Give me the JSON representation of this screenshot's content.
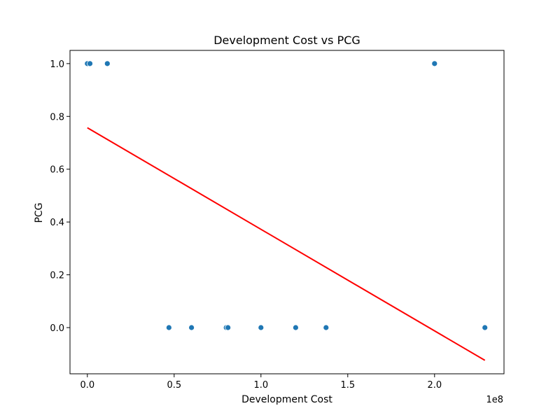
{
  "chart_data": {
    "type": "scatter",
    "title": "Development Cost vs PCG",
    "xlabel": "Development Cost",
    "ylabel": "PCG",
    "x_offset_label": "1e8",
    "xlim": [
      -10000000,
      240000000
    ],
    "ylim": [
      -0.175,
      1.05
    ],
    "x_ticks": [
      0,
      50000000,
      100000000,
      150000000,
      200000000
    ],
    "x_tick_labels": [
      "0.0",
      "0.5",
      "1.0",
      "1.5",
      "2.0"
    ],
    "y_ticks": [
      0.0,
      0.2,
      0.4,
      0.6,
      0.8,
      1.0
    ],
    "y_tick_labels": [
      "0.0",
      "0.2",
      "0.4",
      "0.6",
      "0.8",
      "1.0"
    ],
    "grid": false,
    "point_color": "#1f77b4",
    "points": [
      {
        "x": 0,
        "y": 1
      },
      {
        "x": 1500000,
        "y": 1
      },
      {
        "x": 11500000,
        "y": 1
      },
      {
        "x": 200000000,
        "y": 1
      },
      {
        "x": 47000000,
        "y": 0
      },
      {
        "x": 60000000,
        "y": 0
      },
      {
        "x": 80000000,
        "y": 0
      },
      {
        "x": 81000000,
        "y": 0
      },
      {
        "x": 100000000,
        "y": 0
      },
      {
        "x": 120000000,
        "y": 0
      },
      {
        "x": 137500000,
        "y": 0
      },
      {
        "x": 229000000,
        "y": 0
      }
    ],
    "trend_line": {
      "color": "#ff0000",
      "x": [
        0,
        229000000
      ],
      "y": [
        0.757,
        -0.124
      ]
    }
  }
}
